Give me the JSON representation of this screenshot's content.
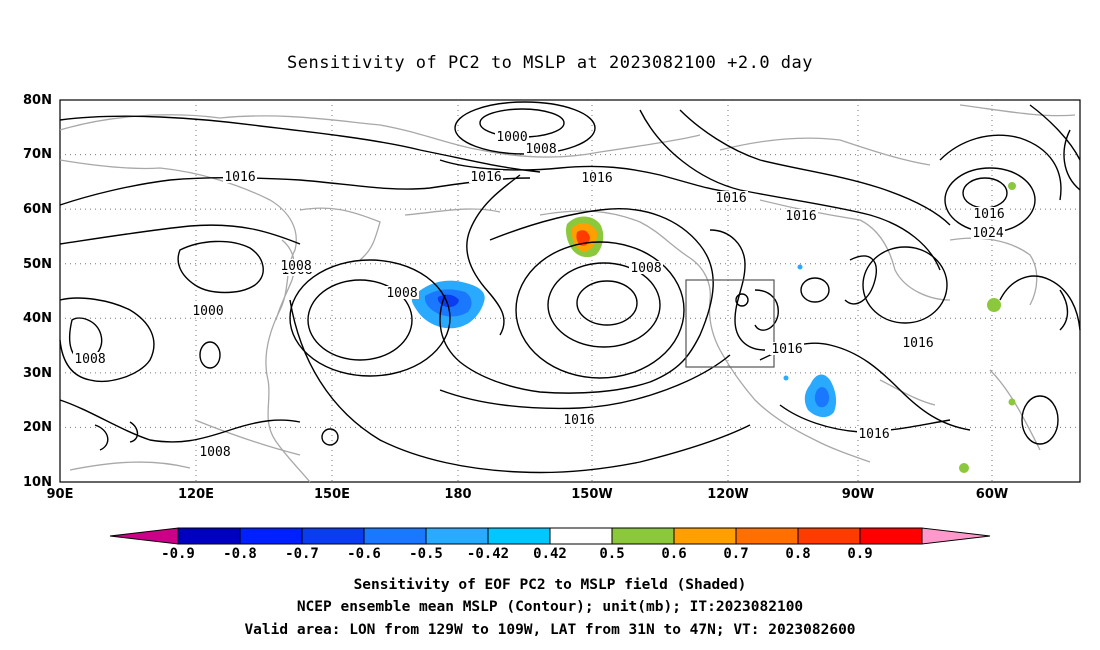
{
  "title": "Sensitivity of PC2 to MSLP at 2023082100 +2.0 day",
  "map": {
    "lat_labels": [
      "80N",
      "70N",
      "60N",
      "50N",
      "40N",
      "30N",
      "20N",
      "10N"
    ],
    "lon_labels": [
      "90E",
      "120E",
      "150E",
      "180",
      "150W",
      "120W",
      "90W",
      "60W"
    ],
    "contour_labels": [
      "1000",
      "1008",
      "1016",
      "1016",
      "1016",
      "1016",
      "1008",
      "1000",
      "1008",
      "1016",
      "1024",
      "1008",
      "1016",
      "1008",
      "1016",
      "1016",
      "1016",
      "1016",
      "1008",
      "1008"
    ],
    "valid_box": "LON 129W-109W, LAT 31N-47N"
  },
  "colorbar": {
    "labels": [
      "-0.9",
      "-0.8",
      "-0.7",
      "-0.6",
      "-0.5",
      "-0.42",
      "0.42",
      "0.5",
      "0.6",
      "0.7",
      "0.8",
      "0.9"
    ],
    "colors": [
      "#cc0088",
      "#0000c0",
      "#0020ff",
      "#0a3cf0",
      "#1a78ff",
      "#2aaaff",
      "#00c8ff",
      "#ffffff",
      "#8cc83c",
      "#ffa000",
      "#ff7000",
      "#ff3c00",
      "#ff0000",
      "#ff99cc"
    ]
  },
  "footer": {
    "line1": "Sensitivity of EOF PC2 to MSLP field (Shaded)",
    "line2": "NCEP ensemble mean MSLP (Contour); unit(mb); IT:2023082100",
    "line3": "Valid area: LON from 129W to 109W, LAT from 31N to 47N; VT: 2023082600"
  }
}
